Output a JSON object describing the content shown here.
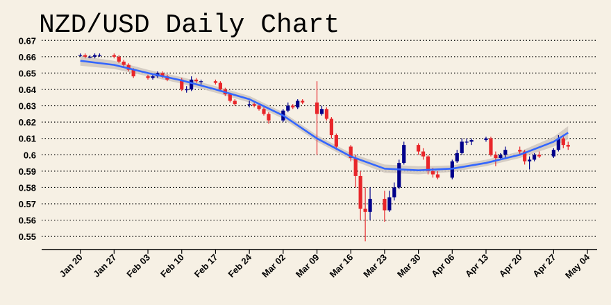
{
  "chart_data": {
    "type": "candlestick",
    "title": "NZD/USD Daily Chart",
    "x": [
      "Jan 20",
      "Jan 21",
      "Jan 22",
      "Jan 23",
      "Jan 24",
      "Jan 27",
      "Jan 28",
      "Jan 29",
      "Jan 30",
      "Jan 31",
      "Feb 03",
      "Feb 04",
      "Feb 05",
      "Feb 06",
      "Feb 07",
      "Feb 10",
      "Feb 11",
      "Feb 12",
      "Feb 13",
      "Feb 14",
      "Feb 17",
      "Feb 18",
      "Feb 19",
      "Feb 20",
      "Feb 21",
      "Feb 24",
      "Feb 25",
      "Feb 26",
      "Feb 27",
      "Feb 28",
      "Mar 02",
      "Mar 03",
      "Mar 04",
      "Mar 05",
      "Mar 06",
      "Mar 09",
      "Mar 10",
      "Mar 11",
      "Mar 12",
      "Mar 13",
      "Mar 16",
      "Mar 17",
      "Mar 18",
      "Mar 19",
      "Mar 20",
      "Mar 23",
      "Mar 24",
      "Mar 25",
      "Mar 26",
      "Mar 27",
      "Mar 30",
      "Mar 31",
      "Apr 01",
      "Apr 02",
      "Apr 03",
      "Apr 06",
      "Apr 07",
      "Apr 08",
      "Apr 09",
      "Apr 10",
      "Apr 13",
      "Apr 14",
      "Apr 15",
      "Apr 16",
      "Apr 17",
      "Apr 20",
      "Apr 21",
      "Apr 22",
      "Apr 23",
      "Apr 24",
      "Apr 27",
      "Apr 28",
      "Apr 29",
      "Apr 30"
    ],
    "open": [
      0.661,
      0.661,
      0.66,
      0.66,
      0.661,
      0.661,
      0.66,
      0.657,
      0.655,
      0.652,
      0.648,
      0.647,
      0.648,
      0.65,
      0.648,
      0.646,
      0.64,
      0.64,
      0.646,
      0.645,
      0.645,
      0.644,
      0.64,
      0.637,
      0.633,
      0.631,
      0.631,
      0.63,
      0.628,
      0.625,
      0.621,
      0.627,
      0.63,
      0.629,
      0.633,
      0.632,
      0.625,
      0.628,
      0.622,
      0.612,
      0.605,
      0.598,
      0.587,
      0.567,
      0.565,
      0.573,
      0.566,
      0.574,
      0.58,
      0.595,
      0.606,
      0.602,
      0.599,
      0.59,
      0.588,
      0.586,
      0.596,
      0.601,
      0.608,
      0.608,
      0.609,
      0.61,
      0.6,
      0.598,
      0.6,
      0.603,
      0.602,
      0.596,
      0.597,
      0.6,
      0.599,
      0.603,
      0.61,
      0.606
    ],
    "high": [
      0.662,
      0.662,
      0.661,
      0.662,
      0.662,
      0.662,
      0.661,
      0.658,
      0.656,
      0.653,
      0.649,
      0.649,
      0.651,
      0.651,
      0.649,
      0.647,
      0.642,
      0.648,
      0.647,
      0.646,
      0.646,
      0.645,
      0.641,
      0.638,
      0.634,
      0.633,
      0.632,
      0.631,
      0.629,
      0.626,
      0.628,
      0.632,
      0.631,
      0.634,
      0.634,
      0.645,
      0.63,
      0.629,
      0.623,
      0.613,
      0.606,
      0.6,
      0.59,
      0.58,
      0.58,
      0.578,
      0.578,
      0.583,
      0.597,
      0.608,
      0.607,
      0.604,
      0.6,
      0.592,
      0.59,
      0.597,
      0.603,
      0.61,
      0.61,
      0.61,
      0.611,
      0.611,
      0.602,
      0.601,
      0.605,
      0.605,
      0.603,
      0.599,
      0.601,
      0.602,
      0.604,
      0.612,
      0.612,
      0.608
    ],
    "low": [
      0.66,
      0.659,
      0.659,
      0.659,
      0.66,
      0.659,
      0.656,
      0.654,
      0.651,
      0.647,
      0.646,
      0.646,
      0.647,
      0.647,
      0.645,
      0.639,
      0.638,
      0.639,
      0.644,
      0.643,
      0.643,
      0.639,
      0.636,
      0.632,
      0.63,
      0.629,
      0.629,
      0.627,
      0.624,
      0.619,
      0.62,
      0.626,
      0.628,
      0.628,
      0.631,
      0.6,
      0.624,
      0.621,
      0.61,
      0.603,
      0.596,
      0.58,
      0.56,
      0.547,
      0.56,
      0.559,
      0.565,
      0.572,
      0.579,
      0.594,
      0.6,
      0.597,
      0.588,
      0.586,
      0.585,
      0.585,
      0.595,
      0.6,
      0.606,
      0.606,
      0.608,
      0.599,
      0.593,
      0.597,
      0.598,
      0.6,
      0.594,
      0.591,
      0.596,
      0.598,
      0.598,
      0.602,
      0.604,
      0.603
    ],
    "close": [
      0.661,
      0.66,
      0.66,
      0.661,
      0.661,
      0.66,
      0.657,
      0.655,
      0.652,
      0.648,
      0.647,
      0.648,
      0.65,
      0.648,
      0.646,
      0.64,
      0.64,
      0.646,
      0.645,
      0.645,
      0.644,
      0.64,
      0.637,
      0.633,
      0.631,
      0.631,
      0.63,
      0.628,
      0.625,
      0.621,
      0.627,
      0.63,
      0.629,
      0.633,
      0.632,
      0.625,
      0.628,
      0.622,
      0.612,
      0.605,
      0.598,
      0.587,
      0.567,
      0.565,
      0.573,
      0.566,
      0.574,
      0.58,
      0.595,
      0.606,
      0.602,
      0.599,
      0.59,
      0.588,
      0.586,
      0.596,
      0.601,
      0.608,
      0.608,
      0.609,
      0.61,
      0.6,
      0.598,
      0.6,
      0.603,
      0.602,
      0.596,
      0.597,
      0.6,
      0.599,
      0.603,
      0.61,
      0.606,
      0.605
    ],
    "up_color": "#00008b",
    "down_color": "#e8262a",
    "trend": {
      "x": [
        "Jan 20",
        "Jan 27",
        "Feb 03",
        "Feb 10",
        "Feb 17",
        "Feb 24",
        "Mar 02",
        "Mar 09",
        "Mar 16",
        "Mar 23",
        "Mar 30",
        "Apr 06",
        "Apr 13",
        "Apr 20",
        "Apr 27",
        "Apr 30"
      ],
      "values": [
        0.6575,
        0.655,
        0.65,
        0.6455,
        0.64,
        0.634,
        0.624,
        0.61,
        0.599,
        0.5915,
        0.5905,
        0.5915,
        0.595,
        0.6,
        0.608,
        0.6135
      ],
      "lower": [
        0.6545,
        0.6525,
        0.648,
        0.6435,
        0.638,
        0.632,
        0.622,
        0.608,
        0.597,
        0.589,
        0.588,
        0.5895,
        0.593,
        0.598,
        0.605,
        0.6095
      ],
      "upper": [
        0.6605,
        0.6575,
        0.652,
        0.6475,
        0.642,
        0.636,
        0.626,
        0.612,
        0.601,
        0.594,
        0.593,
        0.5935,
        0.597,
        0.602,
        0.611,
        0.6175
      ],
      "color": "#3366ff",
      "band_color": "#cfc7be"
    },
    "xlim": [
      "Jan 12",
      "May 06"
    ],
    "xticks": [
      "Jan 20",
      "Jan 27",
      "Feb 03",
      "Feb 10",
      "Feb 17",
      "Feb 24",
      "Mar 02",
      "Mar 09",
      "Mar 16",
      "Mar 23",
      "Mar 30",
      "Apr 06",
      "Apr 13",
      "Apr 20",
      "Apr 27",
      "May 04"
    ],
    "ylim": [
      0.542,
      0.6735
    ],
    "yticks": [
      0.55,
      0.56,
      0.57,
      0.58,
      0.59,
      0.6,
      0.61,
      0.62,
      0.63,
      0.64,
      0.65,
      0.66,
      0.67
    ],
    "grid": true
  }
}
